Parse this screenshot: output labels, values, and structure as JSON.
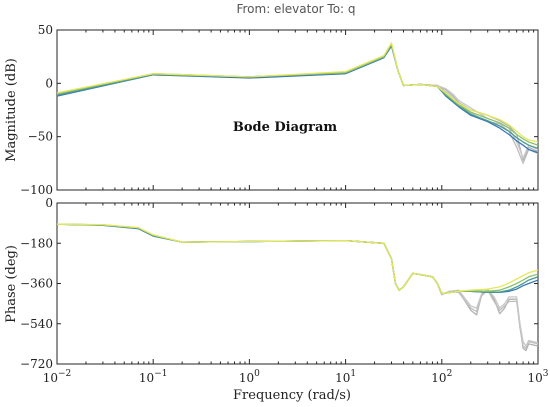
{
  "chart_data": {
    "type": "line",
    "title": "From: elevator To: q",
    "annotation": "Bode Diagram",
    "xlabel": "Frequency (rad/s)",
    "xscale": "log",
    "xlim": [
      0.01,
      1000
    ],
    "xticks": [
      {
        "value": 0.01,
        "base": "10",
        "exp": "−2"
      },
      {
        "value": 0.1,
        "base": "10",
        "exp": "−1"
      },
      {
        "value": 1,
        "base": "10",
        "exp": "0"
      },
      {
        "value": 10,
        "base": "10",
        "exp": "1"
      },
      {
        "value": 100,
        "base": "10",
        "exp": "2"
      },
      {
        "value": 1000,
        "base": "10",
        "exp": "3"
      }
    ],
    "grid": false,
    "panels": [
      {
        "ylabel": "Magnitude (dB)",
        "ylim": [
          -100,
          50
        ],
        "yticks": [
          50,
          0,
          -50,
          -100
        ],
        "ytick_labels": [
          "50",
          "0",
          "−50",
          "−100"
        ],
        "series": [
          {
            "color": "#b3b3b3",
            "freq": [
              0.01,
              0.1,
              1,
              10,
              25,
              30,
              35,
              40,
              60,
              90,
              110,
              130,
              150,
              200,
              300,
              400,
              500,
              600,
              700,
              800,
              1000
            ],
            "values": [
              -10,
              8,
              6,
              10,
              25,
              36,
              12,
              -2,
              -1,
              -2,
              -6,
              -12,
              -18,
              -25,
              -30,
              -35,
              -40,
              -48,
              -72,
              -60,
              -64
            ]
          },
          {
            "color": "#bdbdbd",
            "freq": [
              0.01,
              0.1,
              1,
              10,
              25,
              30,
              35,
              40,
              60,
              90,
              110,
              130,
              150,
              200,
              300,
              400,
              500,
              600,
              700,
              800,
              1000
            ],
            "values": [
              -10,
              8,
              6,
              10,
              25,
              36,
              12,
              -2,
              -1,
              -2,
              -8,
              -14,
              -20,
              -28,
              -36,
              -38,
              -45,
              -60,
              -75,
              -62,
              -66
            ]
          },
          {
            "color": "#c8c8c8",
            "freq": [
              0.01,
              0.1,
              1,
              10,
              25,
              30,
              35,
              40,
              60,
              90,
              110,
              130,
              150,
              200,
              300,
              400,
              500,
              600,
              700,
              800,
              1000
            ],
            "values": [
              -10,
              8,
              6,
              10,
              25,
              36,
              12,
              -2,
              -1,
              -2,
              -5,
              -10,
              -16,
              -23,
              -33,
              -37,
              -42,
              -55,
              -70,
              -58,
              -62
            ]
          },
          {
            "color": "#3a78b8",
            "freq": [
              0.01,
              0.1,
              1,
              10,
              25,
              30,
              35,
              40,
              60,
              90,
              110,
              150,
              200,
              300,
              400,
              500,
              600,
              700,
              800,
              1000
            ],
            "values": [
              -12,
              8,
              5,
              9,
              24,
              35,
              12,
              -2,
              -1,
              -3,
              -12,
              -22,
              -30,
              -36,
              -42,
              -48,
              -54,
              -58,
              -62,
              -65
            ]
          },
          {
            "color": "#4c9a90",
            "freq": [
              0.01,
              0.1,
              1,
              10,
              25,
              30,
              35,
              40,
              60,
              90,
              110,
              150,
              200,
              300,
              400,
              500,
              600,
              700,
              800,
              1000
            ],
            "values": [
              -11,
              8,
              6,
              10,
              25,
              36,
              12,
              -2,
              -1,
              -3,
              -11,
              -21,
              -29,
              -35,
              -40,
              -45,
              -51,
              -55,
              -58,
              -61
            ]
          },
          {
            "color": "#8ac26e",
            "freq": [
              0.01,
              0.1,
              1,
              10,
              25,
              30,
              35,
              40,
              60,
              90,
              110,
              150,
              200,
              300,
              400,
              500,
              600,
              700,
              800,
              1000
            ],
            "values": [
              -10,
              9,
              6,
              10,
              25,
              37,
              12,
              -2,
              -1,
              -3,
              -10,
              -20,
              -27,
              -33,
              -37,
              -42,
              -48,
              -52,
              -55,
              -58
            ]
          },
          {
            "color": "#e6e65a",
            "freq": [
              0.01,
              0.1,
              1,
              10,
              25,
              30,
              35,
              40,
              60,
              90,
              110,
              150,
              200,
              300,
              400,
              500,
              600,
              700,
              800,
              1000
            ],
            "values": [
              -9,
              9,
              6,
              11,
              26,
              38,
              12,
              -2,
              -1,
              -3,
              -9,
              -19,
              -25,
              -30,
              -34,
              -39,
              -45,
              -50,
              -53,
              -55
            ]
          }
        ]
      },
      {
        "ylabel": "Phase (deg)",
        "ylim": [
          -720,
          0
        ],
        "yticks": [
          0,
          -180,
          -360,
          -540,
          -720
        ],
        "ytick_labels": [
          "0",
          "−180",
          "−360",
          "−540",
          "−720"
        ],
        "series": [
          {
            "color": "#b3b3b3",
            "freq": [
              0.01,
              0.03,
              0.07,
              0.1,
              0.2,
              1,
              10,
              25,
              30,
              33,
              36,
              40,
              50,
              60,
              80,
              90,
              100,
              120,
              150,
              200,
              230,
              260,
              300,
              350,
              400,
              450,
              500,
              600,
              650,
              700,
              750,
              800,
              1000
            ],
            "values": [
              -95,
              -98,
              -112,
              -145,
              -175,
              -172,
              -168,
              -180,
              -250,
              -360,
              -390,
              -375,
              -315,
              -320,
              -330,
              -360,
              -410,
              -395,
              -395,
              -480,
              -500,
              -410,
              -390,
              -430,
              -495,
              -470,
              -430,
              -430,
              -550,
              -650,
              -660,
              -630,
              -640
            ]
          },
          {
            "color": "#bdbdbd",
            "freq": [
              0.01,
              0.03,
              0.07,
              0.1,
              0.2,
              1,
              10,
              25,
              30,
              33,
              36,
              40,
              50,
              60,
              80,
              90,
              100,
              120,
              150,
              200,
              230,
              260,
              300,
              350,
              400,
              450,
              500,
              600,
              650,
              700,
              750,
              800,
              1000
            ],
            "values": [
              -95,
              -98,
              -112,
              -145,
              -175,
              -172,
              -168,
              -180,
              -250,
              -360,
              -390,
              -375,
              -315,
              -320,
              -330,
              -360,
              -410,
              -395,
              -400,
              -470,
              -485,
              -415,
              -390,
              -440,
              -480,
              -460,
              -440,
              -440,
              -560,
              -640,
              -650,
              -620,
              -630
            ]
          },
          {
            "color": "#c8c8c8",
            "freq": [
              0.01,
              0.03,
              0.07,
              0.1,
              0.2,
              1,
              10,
              25,
              30,
              33,
              36,
              40,
              50,
              60,
              80,
              90,
              100,
              120,
              150,
              200,
              230,
              260,
              300,
              350,
              400,
              450,
              500,
              600,
              650,
              700,
              750,
              800,
              1000
            ],
            "values": [
              -95,
              -98,
              -112,
              -145,
              -175,
              -172,
              -168,
              -180,
              -250,
              -360,
              -390,
              -375,
              -315,
              -320,
              -330,
              -360,
              -410,
              -395,
              -390,
              -460,
              -470,
              -405,
              -385,
              -420,
              -470,
              -450,
              -420,
              -420,
              -540,
              -620,
              -640,
              -615,
              -625
            ]
          },
          {
            "color": "#3a78b8",
            "freq": [
              0.01,
              0.03,
              0.07,
              0.1,
              0.2,
              1,
              10,
              25,
              30,
              33,
              36,
              40,
              50,
              60,
              80,
              90,
              100,
              150,
              200,
              300,
              400,
              500,
              600,
              700,
              800,
              1000
            ],
            "values": [
              -95,
              -100,
              -115,
              -148,
              -175,
              -172,
              -168,
              -180,
              -250,
              -360,
              -390,
              -375,
              -315,
              -320,
              -330,
              -360,
              -405,
              -395,
              -395,
              -400,
              -400,
              -395,
              -385,
              -370,
              -360,
              -345
            ]
          },
          {
            "color": "#4c9a90",
            "freq": [
              0.01,
              0.03,
              0.07,
              0.1,
              0.2,
              1,
              10,
              25,
              30,
              33,
              36,
              40,
              50,
              60,
              80,
              90,
              100,
              150,
              200,
              300,
              400,
              500,
              600,
              700,
              800,
              1000
            ],
            "values": [
              -95,
              -99,
              -113,
              -146,
              -175,
              -172,
              -168,
              -180,
              -250,
              -360,
              -390,
              -375,
              -315,
              -320,
              -330,
              -360,
              -405,
              -395,
              -395,
              -400,
              -398,
              -390,
              -375,
              -360,
              -345,
              -330
            ]
          },
          {
            "color": "#8ac26e",
            "freq": [
              0.01,
              0.03,
              0.07,
              0.1,
              0.2,
              1,
              10,
              25,
              30,
              33,
              36,
              40,
              50,
              60,
              80,
              90,
              100,
              150,
              200,
              300,
              400,
              500,
              600,
              700,
              800,
              1000
            ],
            "values": [
              -95,
              -98,
              -111,
              -144,
              -175,
              -172,
              -168,
              -180,
              -250,
              -360,
              -390,
              -375,
              -315,
              -320,
              -330,
              -360,
              -405,
              -395,
              -392,
              -395,
              -390,
              -375,
              -360,
              -345,
              -330,
              -318
            ]
          },
          {
            "color": "#e6e65a",
            "freq": [
              0.01,
              0.03,
              0.07,
              0.1,
              0.2,
              1,
              10,
              25,
              30,
              33,
              36,
              40,
              50,
              60,
              80,
              90,
              100,
              150,
              200,
              300,
              400,
              500,
              600,
              700,
              800,
              1000
            ],
            "values": [
              -95,
              -97,
              -110,
              -142,
              -175,
              -172,
              -168,
              -180,
              -250,
              -360,
              -390,
              -375,
              -315,
              -320,
              -330,
              -360,
              -405,
              -395,
              -390,
              -385,
              -375,
              -358,
              -340,
              -325,
              -312,
              -300
            ]
          }
        ]
      }
    ]
  }
}
